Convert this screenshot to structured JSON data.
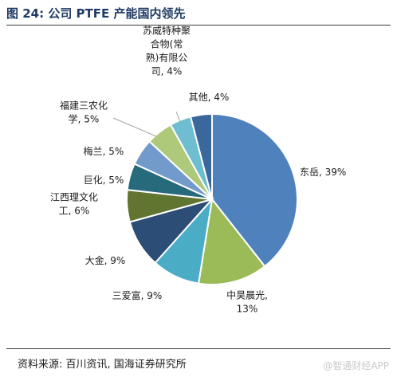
{
  "title": "图 24:  公司 PTFE 产能国内领先",
  "source": "资料来源: 百川资讯, 国海证券研究所",
  "watermark": "@智通财经APP",
  "chart_data": {
    "type": "pie",
    "title": "",
    "slices": [
      {
        "label_lines": [
          "东岳, 39%"
        ],
        "value": 39,
        "color": "#4f81bd"
      },
      {
        "label_lines": [
          "中昊晨光,",
          "13%"
        ],
        "value": 13,
        "color": "#9bbb59"
      },
      {
        "label_lines": [
          "三爱富, 9%"
        ],
        "value": 9,
        "color": "#4bacc6"
      },
      {
        "label_lines": [
          "大金, 9%"
        ],
        "value": 9,
        "color": "#2c4d75"
      },
      {
        "label_lines": [
          "江西理文化",
          "工, 6%"
        ],
        "value": 6,
        "color": "#5f7530"
      },
      {
        "label_lines": [
          "巨化, 5%"
        ],
        "value": 5,
        "color": "#276a7c"
      },
      {
        "label_lines": [
          "梅兰, 5%"
        ],
        "value": 5,
        "color": "#729aca"
      },
      {
        "label_lines": [
          "福建三农化",
          "学, 5%"
        ],
        "value": 5,
        "color": "#afc97a"
      },
      {
        "label_lines": [
          "苏威特种聚",
          "合物(常",
          "熟)有限公",
          "司, 4%"
        ],
        "value": 4,
        "color": "#6fbdd1"
      },
      {
        "label_lines": [
          "其他, 4%"
        ],
        "value": 4,
        "color": "#3a679c"
      }
    ]
  }
}
